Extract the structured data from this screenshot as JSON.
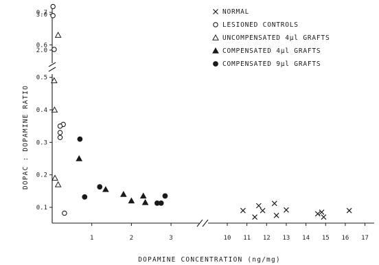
{
  "chart_data": {
    "type": "scatter",
    "xlabel": "DOPAMINE CONCENTRATION (ng/mg)",
    "ylabel": "DOPAC : DOPAMINE RATIO",
    "x_axis": {
      "segments": [
        {
          "range": [
            0,
            3
          ],
          "ticks": [
            "1",
            "2",
            "3"
          ]
        },
        {
          "range": [
            9.7,
            17.3
          ],
          "ticks": [
            "10",
            "11",
            "12",
            "13",
            "14",
            "15",
            "16",
            "17"
          ]
        }
      ],
      "break": "between 3 and 10"
    },
    "y_axis": {
      "segments": [
        {
          "range": [
            0.05,
            0.75
          ],
          "ticks": [
            "0.1",
            "0.2",
            "0.3",
            "0.4",
            "0.5",
            "0.6",
            "0.7"
          ]
        },
        {
          "range": [
            1.9,
            3.3
          ],
          "ticks": [
            "2.0",
            "3.0"
          ]
        }
      ],
      "break": "between 0.7 and 2.0"
    },
    "legend_position": "top-right",
    "series": [
      {
        "name": "NORMAL",
        "marker": "x",
        "points": [
          [
            10.8,
            0.09
          ],
          [
            11.4,
            0.07
          ],
          [
            11.6,
            0.105
          ],
          [
            11.8,
            0.09
          ],
          [
            12.4,
            0.112
          ],
          [
            12.5,
            0.075
          ],
          [
            13.0,
            0.092
          ],
          [
            14.6,
            0.08
          ],
          [
            14.8,
            0.085
          ],
          [
            14.9,
            0.07
          ],
          [
            16.2,
            0.09
          ]
        ]
      },
      {
        "name": "LESIONED CONTROLS",
        "marker": "open-circle",
        "points": [
          [
            0.02,
            3.22
          ],
          [
            0.05,
            2.02
          ],
          [
            0.02,
            0.69
          ],
          [
            0.28,
            0.355
          ],
          [
            0.31,
            0.082
          ],
          [
            0.2,
            0.35
          ],
          [
            0.2,
            0.33
          ],
          [
            0.2,
            0.315
          ]
        ]
      },
      {
        "name": "UNCOMPENSATED 4µl GRAFTS",
        "marker": "open-triangle",
        "points": [
          [
            0.05,
            0.49
          ],
          [
            0.06,
            0.4
          ],
          [
            0.07,
            0.19
          ],
          [
            0.15,
            0.63
          ],
          [
            0.15,
            0.17
          ]
        ]
      },
      {
        "name": "COMPENSATED 4µl GRAFTS",
        "marker": "filled-triangle",
        "points": [
          [
            0.68,
            0.25
          ],
          [
            1.35,
            0.155
          ],
          [
            1.8,
            0.14
          ],
          [
            2.0,
            0.12
          ],
          [
            2.3,
            0.135
          ],
          [
            2.35,
            0.115
          ]
        ]
      },
      {
        "name": "COMPENSATED 9µl GRAFTS",
        "marker": "filled-circle",
        "points": [
          [
            0.7,
            0.31
          ],
          [
            0.82,
            0.132
          ],
          [
            1.2,
            0.163
          ],
          [
            2.65,
            0.113
          ],
          [
            2.75,
            0.113
          ],
          [
            2.85,
            0.135
          ]
        ]
      }
    ]
  }
}
